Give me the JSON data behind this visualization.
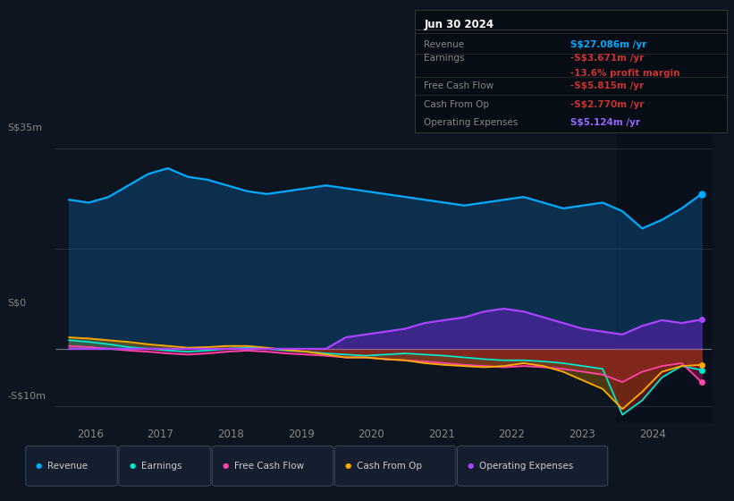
{
  "bg_color": "#0d1520",
  "plot_bg_color": "#0d1520",
  "table_bg_color": "#060d14",
  "title": "Jun 30 2024",
  "y_label_top": "S$35m",
  "y_label_zero": "S$0",
  "y_label_bottom": "-S$10m",
  "x_labels": [
    "2016",
    "2017",
    "2018",
    "2019",
    "2020",
    "2021",
    "2022",
    "2023",
    "2024"
  ],
  "x_ticks": [
    2016,
    2017,
    2018,
    2019,
    2020,
    2021,
    2022,
    2023,
    2024
  ],
  "ylim": [
    -13,
    39
  ],
  "xlim": [
    2015.5,
    2024.85
  ],
  "yref_lines": [
    35,
    17.5,
    0,
    -10
  ],
  "y0_val": 0,
  "y35_val": 35,
  "y_neg10_val": -10,
  "shade_start": 2023.5,
  "revenue_color": "#00aaff",
  "revenue_fill": "#0a4a7a",
  "earnings_color": "#00e8cc",
  "earnings_fill_pos": "#2a6655",
  "earnings_fill_neg": "#8b1a1a",
  "fcf_color": "#ff44aa",
  "fcf_fill_neg": "#aa1155",
  "cashop_color": "#ffaa00",
  "cashop_fill_neg": "#996600",
  "opex_color": "#aa44ff",
  "opex_fill": "#5522aa",
  "legend_items": [
    {
      "label": "Revenue",
      "color": "#00aaff"
    },
    {
      "label": "Earnings",
      "color": "#00e8cc"
    },
    {
      "label": "Free Cash Flow",
      "color": "#ff44aa"
    },
    {
      "label": "Cash From Op",
      "color": "#ffaa00"
    },
    {
      "label": "Operating Expenses",
      "color": "#aa44ff"
    }
  ],
  "table_rows": [
    {
      "label": "Revenue",
      "value": "S$27.086m /yr",
      "value_color": "#00aaff",
      "extra": null,
      "extra_color": null
    },
    {
      "label": "Earnings",
      "value": "-S$3.671m /yr",
      "value_color": "#cc3333",
      "extra": "-13.6% profit margin",
      "extra_color": "#cc3333"
    },
    {
      "label": "Free Cash Flow",
      "value": "-S$5.815m /yr",
      "value_color": "#cc3333",
      "extra": null,
      "extra_color": null
    },
    {
      "label": "Cash From Op",
      "value": "-S$2.770m /yr",
      "value_color": "#cc3333",
      "extra": null,
      "extra_color": null
    },
    {
      "label": "Operating Expenses",
      "value": "S$5.124m /yr",
      "value_color": "#9966ff",
      "extra": null,
      "extra_color": null
    }
  ],
  "revenue": [
    26.0,
    25.5,
    26.5,
    28.5,
    30.5,
    31.5,
    30.0,
    29.5,
    28.5,
    27.5,
    27.0,
    27.5,
    28.0,
    28.5,
    28.0,
    27.5,
    27.0,
    26.5,
    26.0,
    25.5,
    25.0,
    25.5,
    26.0,
    26.5,
    25.5,
    24.5,
    25.0,
    25.5,
    24.0,
    21.0,
    22.5,
    24.5,
    27.0
  ],
  "earnings": [
    1.5,
    1.2,
    0.8,
    0.3,
    0.0,
    -0.3,
    -0.5,
    -0.3,
    0.0,
    0.2,
    0.0,
    -0.3,
    -0.5,
    -0.8,
    -1.0,
    -1.2,
    -1.0,
    -0.8,
    -1.0,
    -1.2,
    -1.5,
    -1.8,
    -2.0,
    -2.0,
    -2.2,
    -2.5,
    -3.0,
    -3.5,
    -11.5,
    -9.0,
    -5.0,
    -3.0,
    -3.7
  ],
  "free_cash_flow": [
    0.5,
    0.3,
    0.0,
    -0.3,
    -0.5,
    -0.8,
    -1.0,
    -0.8,
    -0.5,
    -0.3,
    -0.5,
    -0.8,
    -1.0,
    -1.2,
    -1.5,
    -1.5,
    -1.8,
    -2.0,
    -2.2,
    -2.5,
    -2.8,
    -3.0,
    -3.2,
    -3.0,
    -3.2,
    -3.5,
    -4.0,
    -4.5,
    -5.8,
    -4.0,
    -3.0,
    -2.5,
    -5.8
  ],
  "cash_from_op": [
    2.0,
    1.8,
    1.5,
    1.2,
    0.8,
    0.5,
    0.2,
    0.3,
    0.5,
    0.5,
    0.2,
    -0.2,
    -0.5,
    -1.0,
    -1.5,
    -1.5,
    -1.8,
    -2.0,
    -2.5,
    -2.8,
    -3.0,
    -3.2,
    -3.0,
    -2.5,
    -3.0,
    -4.0,
    -5.5,
    -7.0,
    -10.5,
    -7.5,
    -4.0,
    -3.0,
    -2.8
  ],
  "operating_expenses": [
    0,
    0,
    0,
    0,
    0,
    0,
    0,
    0,
    0,
    0,
    0,
    0,
    0,
    0,
    2.0,
    2.5,
    3.0,
    3.5,
    4.5,
    5.0,
    5.5,
    6.5,
    7.0,
    6.5,
    5.5,
    4.5,
    3.5,
    3.0,
    2.5,
    4.0,
    5.0,
    4.5,
    5.1
  ]
}
